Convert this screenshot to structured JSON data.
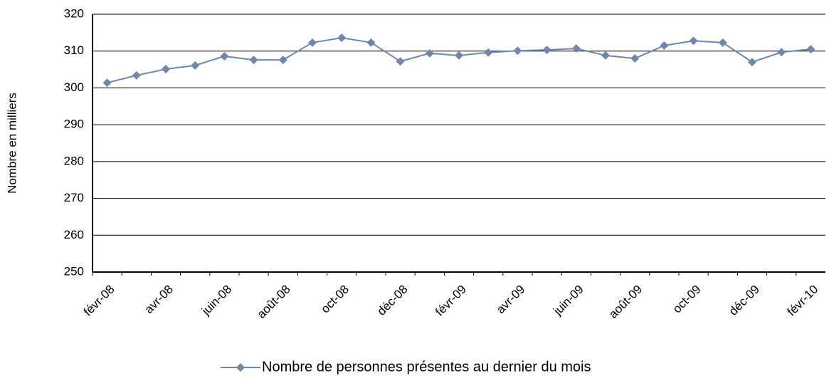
{
  "chart_data": {
    "type": "line",
    "y_label": "Nombre en milliers",
    "categories": [
      "févr-08",
      null,
      "avr-08",
      null,
      "juin-08",
      null,
      "août-08",
      null,
      "oct-08",
      null,
      "déc-08",
      null,
      "févr-09",
      null,
      "avr-09",
      null,
      "juin-09",
      null,
      "août-09",
      null,
      "oct-09",
      null,
      "déc-09",
      null,
      "févr-10"
    ],
    "series": [
      {
        "name": "Nombre de personnes présentes au dernier du mois",
        "color": "#6f86ad",
        "values": [
          301.4,
          303.4,
          305.1,
          306.1,
          308.6,
          307.6,
          307.6,
          312.3,
          313.6,
          312.3,
          307.2,
          309.4,
          308.8,
          309.6,
          310.1,
          310.3,
          310.7,
          308.8,
          308.0,
          311.5,
          312.8,
          312.3,
          307.0,
          309.7,
          310.5
        ]
      }
    ],
    "ylim": [
      250,
      320
    ],
    "yticks": [
      250,
      260,
      270,
      280,
      290,
      300,
      310,
      320
    ],
    "grid": true,
    "legend": "bottom"
  }
}
